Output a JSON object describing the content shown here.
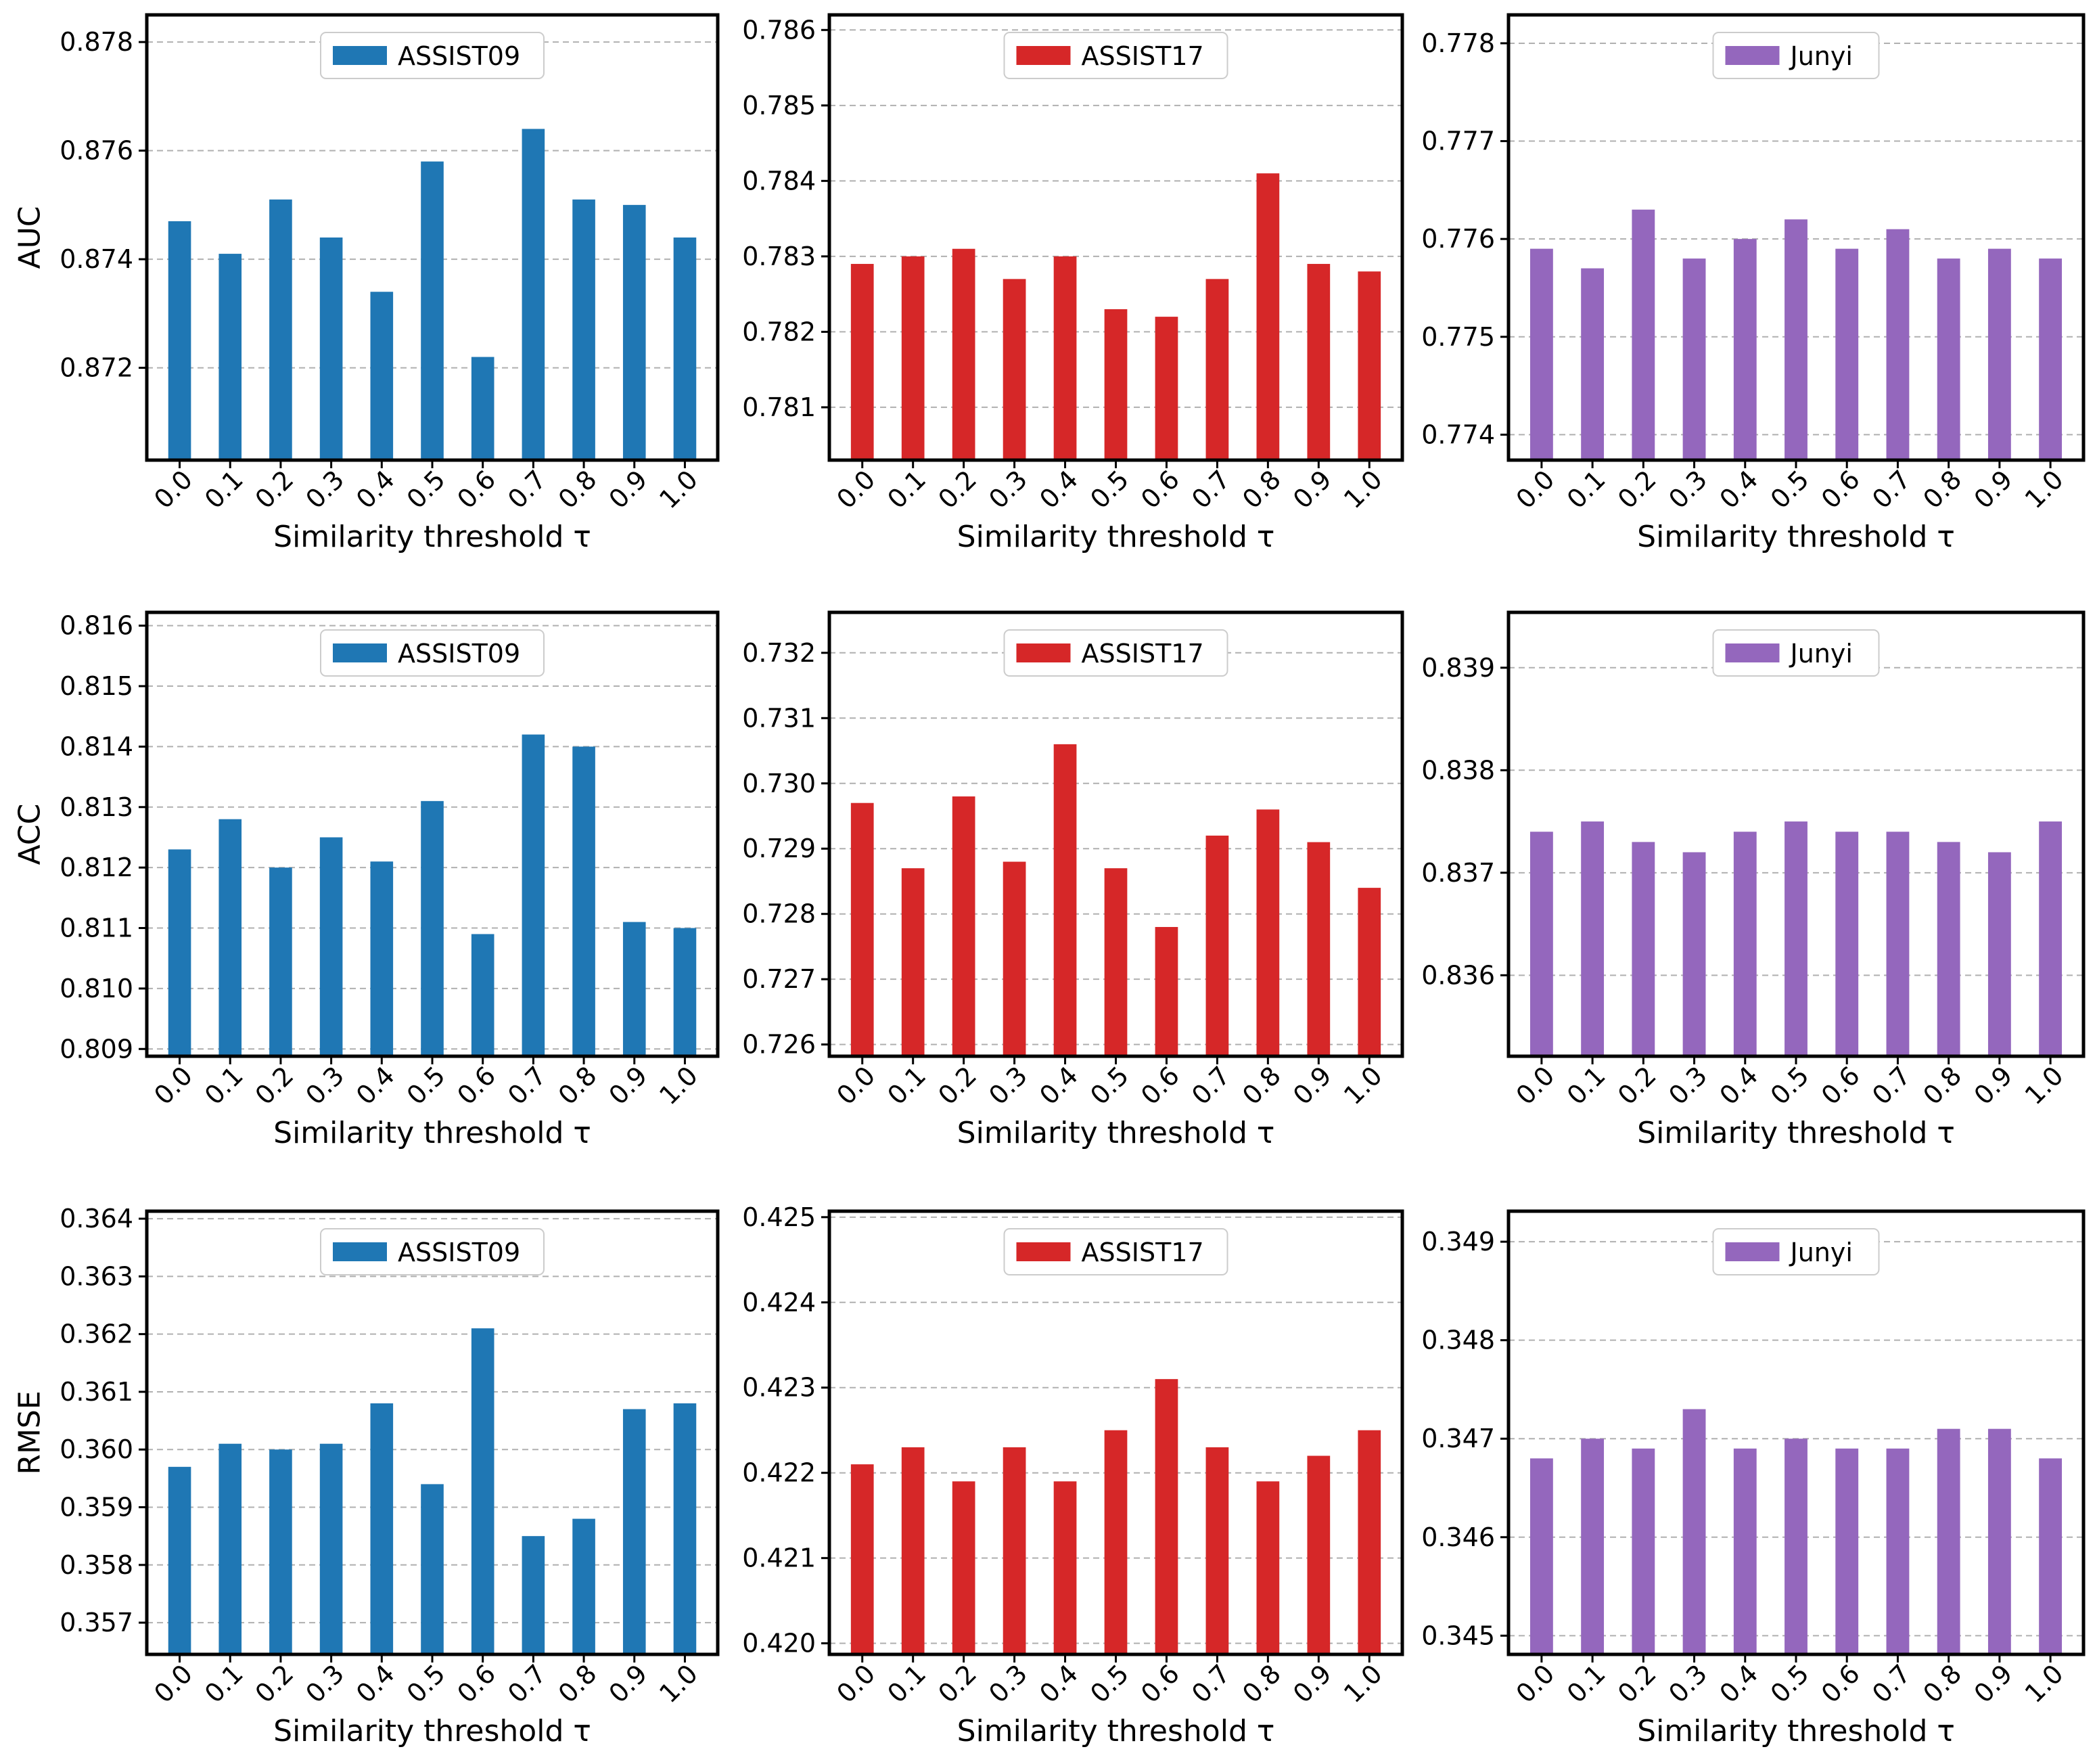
{
  "figure_title": "",
  "chart_data": [
    {
      "type": "bar",
      "id": "auc-assist09",
      "row_label": "AUC",
      "xlabel": "Similarity threshold τ",
      "legend": "ASSIST09",
      "color": "#1f77b4",
      "categories": [
        "0.0",
        "0.1",
        "0.2",
        "0.3",
        "0.4",
        "0.5",
        "0.6",
        "0.7",
        "0.8",
        "0.9",
        "1.0"
      ],
      "values": [
        0.8747,
        0.8741,
        0.8751,
        0.8744,
        0.8734,
        0.8758,
        0.8722,
        0.8764,
        0.8751,
        0.875,
        0.8744
      ],
      "ylim": [
        0.8703,
        0.8785
      ],
      "yticks": [
        "0.872",
        "0.874",
        "0.876",
        "0.878"
      ]
    },
    {
      "type": "bar",
      "id": "auc-assist17",
      "row_label": "",
      "xlabel": "Similarity threshold τ",
      "legend": "ASSIST17",
      "color": "#d62728",
      "categories": [
        "0.0",
        "0.1",
        "0.2",
        "0.3",
        "0.4",
        "0.5",
        "0.6",
        "0.7",
        "0.8",
        "0.9",
        "1.0"
      ],
      "values": [
        0.7829,
        0.783,
        0.7831,
        0.7827,
        0.783,
        0.7823,
        0.7822,
        0.7827,
        0.7841,
        0.7829,
        0.7828
      ],
      "ylim": [
        0.7803,
        0.7862
      ],
      "yticks": [
        "0.781",
        "0.782",
        "0.783",
        "0.784",
        "0.785",
        "0.786"
      ]
    },
    {
      "type": "bar",
      "id": "auc-junyi",
      "row_label": "",
      "xlabel": "Similarity threshold τ",
      "legend": "Junyi",
      "color": "#9467bd",
      "categories": [
        "0.0",
        "0.1",
        "0.2",
        "0.3",
        "0.4",
        "0.5",
        "0.6",
        "0.7",
        "0.8",
        "0.9",
        "1.0"
      ],
      "values": [
        0.7759,
        0.7757,
        0.7763,
        0.7758,
        0.776,
        0.7762,
        0.7759,
        0.7761,
        0.7758,
        0.7759,
        0.7758
      ],
      "ylim": [
        0.77374,
        0.77829
      ],
      "yticks": [
        "0.774",
        "0.775",
        "0.776",
        "0.777",
        "0.778"
      ]
    },
    {
      "type": "bar",
      "id": "acc-assist09",
      "row_label": "ACC",
      "xlabel": "Similarity threshold τ",
      "legend": "ASSIST09",
      "color": "#1f77b4",
      "categories": [
        "0.0",
        "0.1",
        "0.2",
        "0.3",
        "0.4",
        "0.5",
        "0.6",
        "0.7",
        "0.8",
        "0.9",
        "1.0"
      ],
      "values": [
        0.8123,
        0.8128,
        0.812,
        0.8125,
        0.8121,
        0.8131,
        0.8109,
        0.8142,
        0.814,
        0.8111,
        0.811
      ],
      "ylim": [
        0.80888,
        0.81622
      ],
      "yticks": [
        "0.809",
        "0.810",
        "0.811",
        "0.812",
        "0.813",
        "0.814",
        "0.815",
        "0.816"
      ]
    },
    {
      "type": "bar",
      "id": "acc-assist17",
      "row_label": "",
      "xlabel": "Similarity threshold τ",
      "legend": "ASSIST17",
      "color": "#d62728",
      "categories": [
        "0.0",
        "0.1",
        "0.2",
        "0.3",
        "0.4",
        "0.5",
        "0.6",
        "0.7",
        "0.8",
        "0.9",
        "1.0"
      ],
      "values": [
        0.7297,
        0.7287,
        0.7298,
        0.7288,
        0.7306,
        0.7287,
        0.7278,
        0.7292,
        0.7296,
        0.7291,
        0.7284
      ],
      "ylim": [
        0.72582,
        0.73262
      ],
      "yticks": [
        "0.726",
        "0.727",
        "0.728",
        "0.729",
        "0.730",
        "0.731",
        "0.732"
      ]
    },
    {
      "type": "bar",
      "id": "acc-junyi",
      "row_label": "",
      "xlabel": "Similarity threshold τ",
      "legend": "Junyi",
      "color": "#9467bd",
      "categories": [
        "0.0",
        "0.1",
        "0.2",
        "0.3",
        "0.4",
        "0.5",
        "0.6",
        "0.7",
        "0.8",
        "0.9",
        "1.0"
      ],
      "values": [
        0.8374,
        0.8375,
        0.8373,
        0.8372,
        0.8374,
        0.8375,
        0.8374,
        0.8374,
        0.8373,
        0.8372,
        0.8375
      ],
      "ylim": [
        0.83521,
        0.83954
      ],
      "yticks": [
        "0.836",
        "0.837",
        "0.838",
        "0.839"
      ]
    },
    {
      "type": "bar",
      "id": "rmse-assist09",
      "row_label": "RMSE",
      "xlabel": "Similarity threshold τ",
      "legend": "ASSIST09",
      "color": "#1f77b4",
      "categories": [
        "0.0",
        "0.1",
        "0.2",
        "0.3",
        "0.4",
        "0.5",
        "0.6",
        "0.7",
        "0.8",
        "0.9",
        "1.0"
      ],
      "values": [
        0.3597,
        0.3601,
        0.36,
        0.3601,
        0.3608,
        0.3594,
        0.3621,
        0.3585,
        0.3588,
        0.3607,
        0.3608
      ],
      "ylim": [
        0.35645,
        0.36413
      ],
      "yticks": [
        "0.357",
        "0.358",
        "0.359",
        "0.360",
        "0.361",
        "0.362",
        "0.363",
        "0.364"
      ]
    },
    {
      "type": "bar",
      "id": "rmse-assist17",
      "row_label": "",
      "xlabel": "Similarity threshold τ",
      "legend": "ASSIST17",
      "color": "#d62728",
      "categories": [
        "0.0",
        "0.1",
        "0.2",
        "0.3",
        "0.4",
        "0.5",
        "0.6",
        "0.7",
        "0.8",
        "0.9",
        "1.0"
      ],
      "values": [
        0.4221,
        0.4223,
        0.4219,
        0.4223,
        0.4219,
        0.4225,
        0.4231,
        0.4223,
        0.4219,
        0.4222,
        0.4225
      ],
      "ylim": [
        0.41987,
        0.42507
      ],
      "yticks": [
        "0.420",
        "0.421",
        "0.422",
        "0.423",
        "0.424",
        "0.425"
      ]
    },
    {
      "type": "bar",
      "id": "rmse-junyi",
      "row_label": "",
      "xlabel": "Similarity threshold τ",
      "legend": "Junyi",
      "color": "#9467bd",
      "categories": [
        "0.0",
        "0.1",
        "0.2",
        "0.3",
        "0.4",
        "0.5",
        "0.6",
        "0.7",
        "0.8",
        "0.9",
        "1.0"
      ],
      "values": [
        0.3468,
        0.347,
        0.3469,
        0.3473,
        0.3469,
        0.347,
        0.3469,
        0.3469,
        0.3471,
        0.3471,
        0.3468
      ],
      "ylim": [
        0.34481,
        0.34931
      ],
      "yticks": [
        "0.345",
        "0.346",
        "0.347",
        "0.348",
        "0.349"
      ]
    }
  ]
}
